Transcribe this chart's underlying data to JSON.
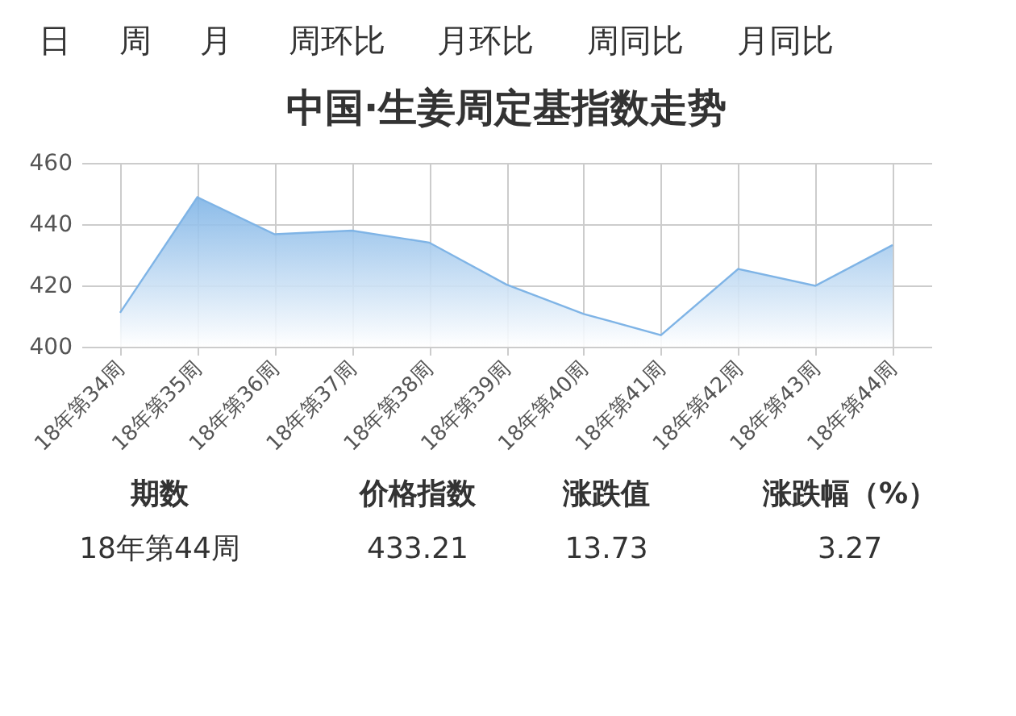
{
  "chart_data": {
    "type": "area",
    "title": "中国·生姜周定基指数走势",
    "categories": [
      "18年第34周",
      "18年第35周",
      "18年第36周",
      "18年第37周",
      "18年第38周",
      "18年第39周",
      "18年第40周",
      "18年第41周",
      "18年第42周",
      "18年第43周",
      "18年第44周"
    ],
    "series": [
      {
        "color": "#7fb4e6",
        "values": [
          411.1,
          448.8,
          436.7,
          437.9,
          434.0,
          420.3,
          410.7,
          403.8,
          425.4,
          419.9,
          433.2
        ]
      }
    ],
    "ylim": [
      400,
      460
    ],
    "yticks": [
      400,
      420,
      440,
      460
    ],
    "grid": true,
    "legend": false,
    "annotations": [
      "日",
      "周",
      "月",
      "周环比",
      "月环比",
      "周同比",
      "月同比",
      "期数",
      "价格指数",
      "涨跌值",
      "涨跌幅（%）",
      "18年第44周",
      "433.21",
      "13.73",
      "3.27"
    ]
  }
}
